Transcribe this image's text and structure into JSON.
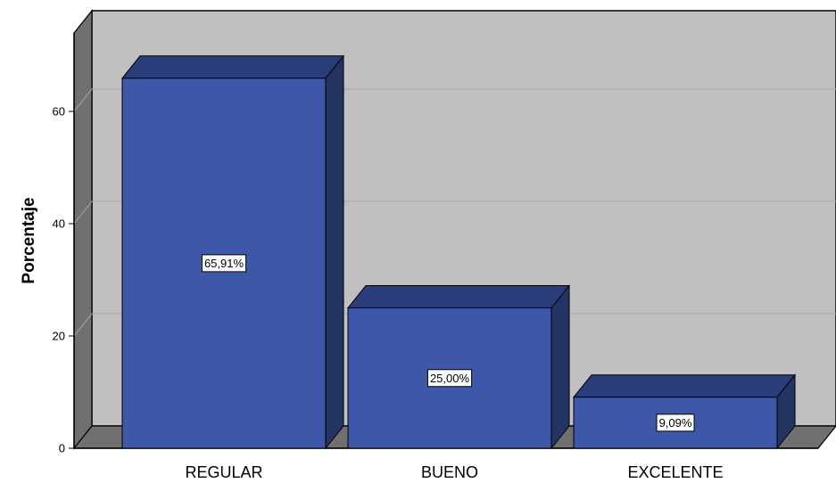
{
  "chart_data": {
    "type": "bar",
    "style": "3d-bar",
    "categories": [
      "REGULAR",
      "BUENO",
      "EXCELENTE"
    ],
    "values": [
      65.91,
      25.0,
      9.09
    ],
    "data_labels": [
      "65,91%",
      "25,00%",
      "9,09%"
    ],
    "title": "",
    "xlabel": "",
    "ylabel": "Porcentaje",
    "ylim": [
      0,
      70
    ],
    "yticks": [
      0,
      20,
      40,
      60
    ],
    "ytick_labels": [
      "0",
      "20",
      "40",
      "60"
    ],
    "grid": true,
    "legend": "none",
    "colors": {
      "bar_front": "#3d58a8",
      "bar_top": "#2a3d78",
      "bar_side": "#243463",
      "plot_back": "#c0c0c0",
      "plot_left_wall": "#707070",
      "plot_floor": "#707070",
      "gridline": "#a9a9a9"
    }
  }
}
